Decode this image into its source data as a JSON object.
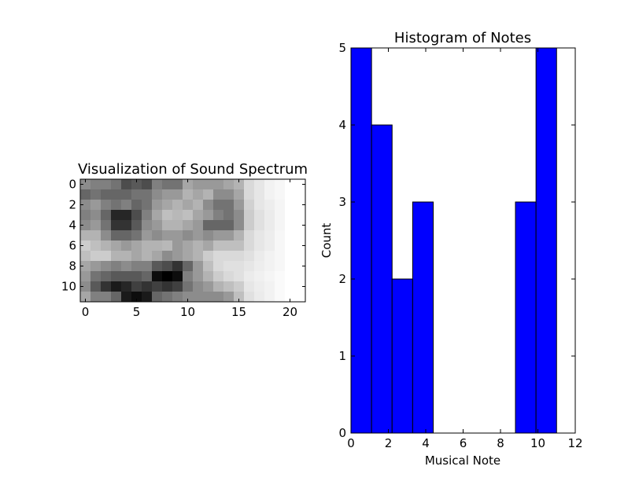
{
  "chart_data": [
    {
      "type": "heatmap",
      "title": "Visualization of Sound Spectrum",
      "xlabel": "",
      "ylabel": "",
      "colormap": "gray",
      "rows": 12,
      "cols": 22,
      "x_ticks": [
        "0",
        "5",
        "10",
        "15",
        "20"
      ],
      "y_ticks": [
        "0",
        "2",
        "4",
        "6",
        "8",
        "10"
      ],
      "values": [
        [
          0.55,
          0.5,
          0.5,
          0.45,
          0.3,
          0.35,
          0.3,
          0.5,
          0.45,
          0.45,
          0.65,
          0.6,
          0.6,
          0.6,
          0.65,
          0.7,
          0.85,
          0.9,
          0.95,
          0.97,
          1.0,
          1.0
        ],
        [
          0.4,
          0.45,
          0.4,
          0.4,
          0.4,
          0.45,
          0.45,
          0.55,
          0.6,
          0.6,
          0.7,
          0.65,
          0.7,
          0.55,
          0.55,
          0.65,
          0.85,
          0.9,
          0.95,
          0.97,
          1.0,
          1.0
        ],
        [
          0.55,
          0.6,
          0.5,
          0.45,
          0.5,
          0.4,
          0.45,
          0.6,
          0.65,
          0.7,
          0.65,
          0.7,
          0.55,
          0.45,
          0.45,
          0.6,
          0.82,
          0.9,
          0.93,
          0.96,
          1.0,
          1.0
        ],
        [
          0.5,
          0.55,
          0.4,
          0.15,
          0.15,
          0.3,
          0.5,
          0.65,
          0.75,
          0.72,
          0.75,
          0.65,
          0.6,
          0.5,
          0.45,
          0.55,
          0.8,
          0.88,
          0.92,
          0.96,
          1.0,
          1.0
        ],
        [
          0.55,
          0.6,
          0.45,
          0.2,
          0.2,
          0.35,
          0.55,
          0.6,
          0.7,
          0.7,
          0.65,
          0.6,
          0.4,
          0.4,
          0.4,
          0.55,
          0.8,
          0.88,
          0.92,
          0.96,
          1.0,
          1.0
        ],
        [
          0.7,
          0.7,
          0.55,
          0.4,
          0.4,
          0.45,
          0.6,
          0.55,
          0.6,
          0.6,
          0.55,
          0.6,
          0.55,
          0.6,
          0.6,
          0.7,
          0.85,
          0.9,
          0.93,
          0.97,
          1.0,
          1.0
        ],
        [
          0.8,
          0.75,
          0.7,
          0.65,
          0.6,
          0.65,
          0.7,
          0.7,
          0.72,
          0.6,
          0.65,
          0.7,
          0.65,
          0.75,
          0.75,
          0.75,
          0.85,
          0.9,
          0.93,
          0.97,
          1.0,
          1.0
        ],
        [
          0.75,
          0.8,
          0.8,
          0.7,
          0.7,
          0.65,
          0.7,
          0.65,
          0.55,
          0.6,
          0.65,
          0.7,
          0.8,
          0.85,
          0.85,
          0.85,
          0.88,
          0.92,
          0.95,
          0.97,
          1.0,
          1.0
        ],
        [
          0.65,
          0.6,
          0.55,
          0.5,
          0.55,
          0.5,
          0.5,
          0.35,
          0.3,
          0.2,
          0.4,
          0.6,
          0.75,
          0.85,
          0.88,
          0.88,
          0.9,
          0.93,
          0.95,
          0.97,
          1.0,
          1.0
        ],
        [
          0.6,
          0.45,
          0.4,
          0.35,
          0.35,
          0.35,
          0.4,
          0.05,
          0.0,
          0.05,
          0.5,
          0.6,
          0.7,
          0.8,
          0.85,
          0.88,
          0.92,
          0.94,
          0.96,
          0.98,
          1.0,
          1.0
        ],
        [
          0.55,
          0.35,
          0.2,
          0.1,
          0.15,
          0.25,
          0.2,
          0.25,
          0.2,
          0.25,
          0.45,
          0.55,
          0.6,
          0.7,
          0.75,
          0.8,
          0.9,
          0.93,
          0.95,
          0.98,
          1.0,
          1.0
        ],
        [
          0.65,
          0.5,
          0.5,
          0.4,
          0.1,
          0.05,
          0.1,
          0.4,
          0.45,
          0.5,
          0.55,
          0.55,
          0.55,
          0.55,
          0.6,
          0.75,
          0.88,
          0.92,
          0.95,
          0.98,
          1.0,
          1.0
        ]
      ]
    },
    {
      "type": "bar",
      "title": "Histogram of Notes",
      "xlabel": "Musical Note",
      "ylabel": "Count",
      "xlim": [
        0,
        12
      ],
      "ylim": [
        0,
        5
      ],
      "x_ticks": [
        "0",
        "2",
        "4",
        "6",
        "8",
        "10",
        "12"
      ],
      "y_ticks": [
        "0",
        "1",
        "2",
        "3",
        "4",
        "5"
      ],
      "bar_color": "#0000ff",
      "bins": [
        {
          "x0": 0.0,
          "x1": 1.1,
          "count": 5
        },
        {
          "x0": 1.1,
          "x1": 2.2,
          "count": 4
        },
        {
          "x0": 2.2,
          "x1": 3.3,
          "count": 2
        },
        {
          "x0": 3.3,
          "x1": 4.4,
          "count": 3
        },
        {
          "x0": 4.4,
          "x1": 5.5,
          "count": 0
        },
        {
          "x0": 5.5,
          "x1": 6.6,
          "count": 0
        },
        {
          "x0": 6.6,
          "x1": 7.7,
          "count": 0
        },
        {
          "x0": 7.7,
          "x1": 8.8,
          "count": 0
        },
        {
          "x0": 8.8,
          "x1": 9.9,
          "count": 3
        },
        {
          "x0": 9.9,
          "x1": 11.0,
          "count": 5
        }
      ]
    }
  ]
}
